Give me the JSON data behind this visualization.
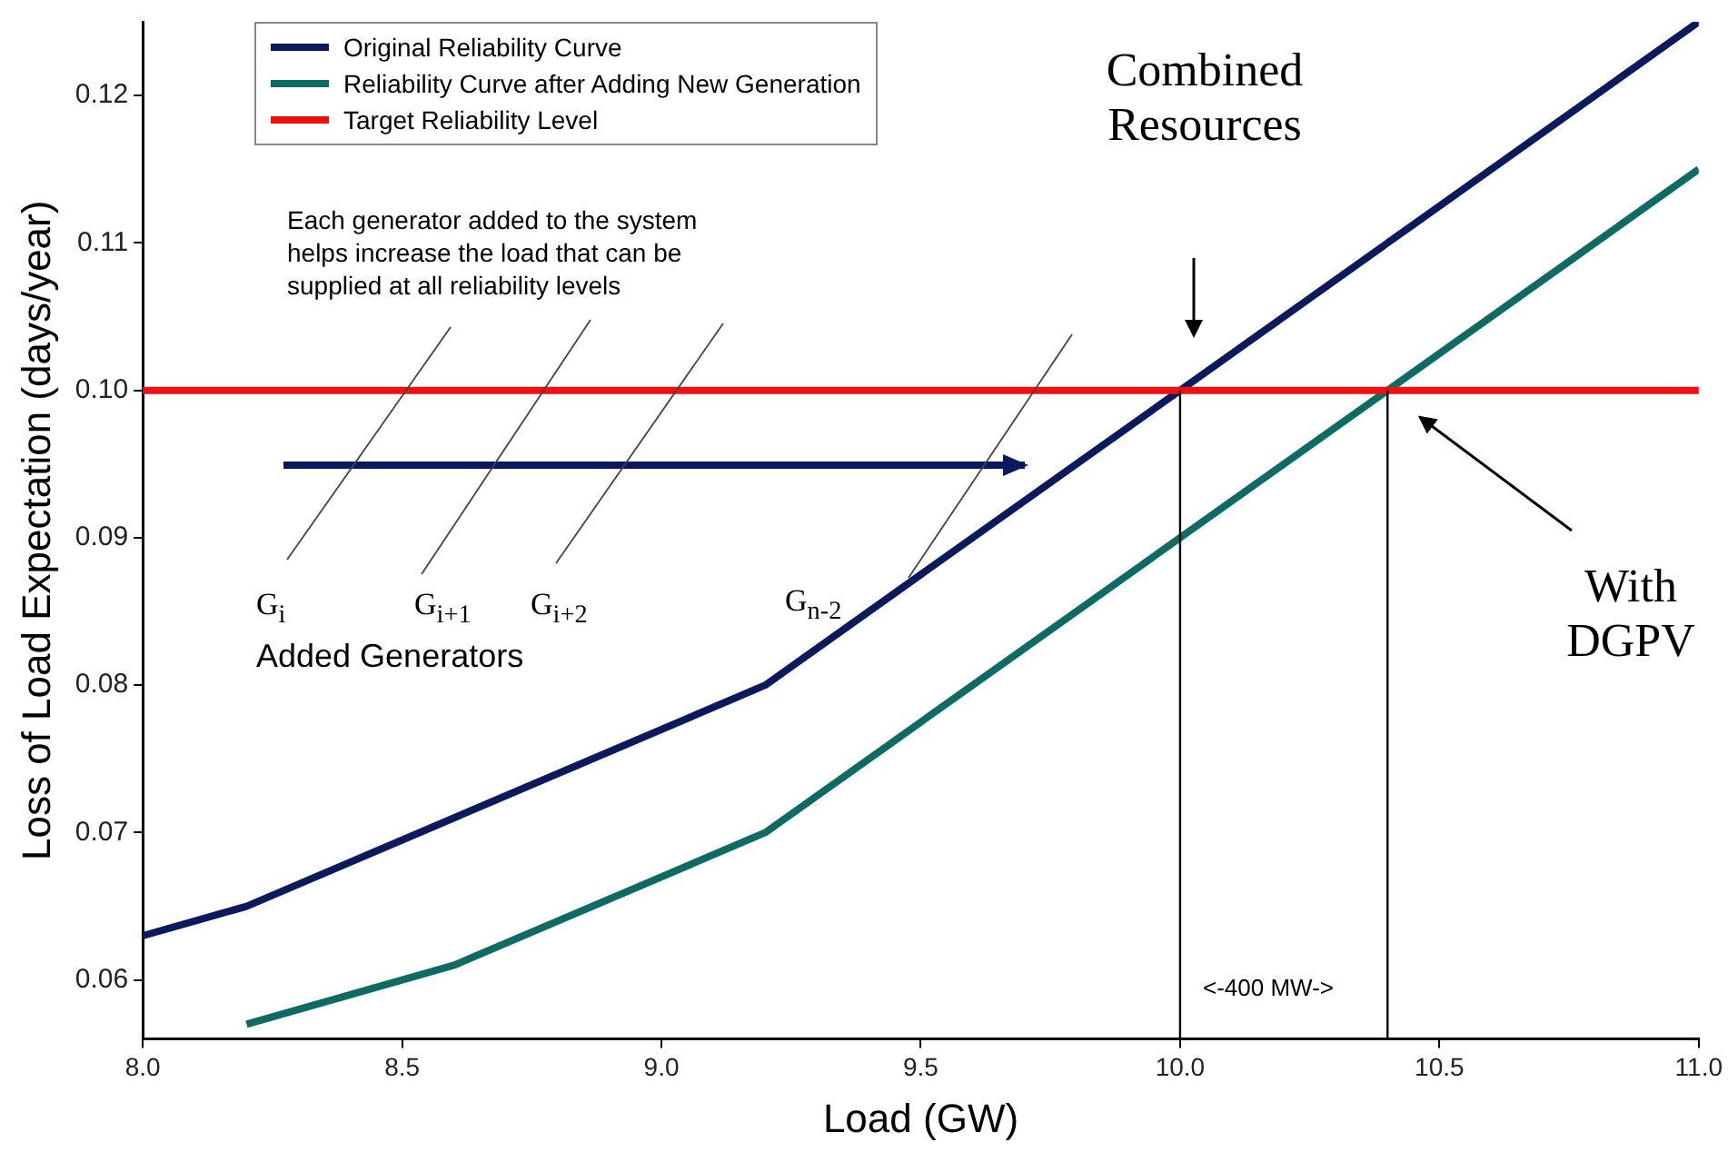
{
  "chart_data": {
    "type": "line",
    "xlabel": "Load (GW)",
    "ylabel": "Loss of Load Expectation (days/year)",
    "series": [
      {
        "name": "Original Reliability Curve",
        "color": "#0a1a5c",
        "x": [
          8.0,
          8.2,
          8.6,
          9.2,
          10.0,
          11.0
        ],
        "values": [
          0.063,
          0.065,
          0.071,
          0.08,
          0.1,
          0.125
        ]
      },
      {
        "name": "Reliability Curve after Adding New Generation",
        "color": "#0e6b64",
        "x": [
          8.2,
          8.6,
          9.2,
          10.4,
          11.0
        ],
        "values": [
          0.057,
          0.061,
          0.07,
          0.1,
          0.115
        ]
      }
    ],
    "ref_lines": [
      {
        "axis": "y",
        "value": 0.1,
        "label": "Target Reliability Level",
        "color": "#ee1111"
      },
      {
        "axis": "x",
        "value": 10.0,
        "color": "#000000"
      },
      {
        "axis": "x",
        "value": 10.4,
        "color": "#000000"
      }
    ],
    "annotations": [
      "Combined Resources",
      "With DGPV",
      "Each generator added to the system helps increase the load that can be supplied at all reliability levels",
      "G$_{i}$",
      "G$_{i+1}$",
      "G$_{i+2}$",
      "G$_{n-2}$",
      "Added Generators",
      "<-400 MW->"
    ],
    "xlim": [
      8.0,
      11.0
    ],
    "xticks": [
      {
        "value": 8,
        "label": "8.0"
      },
      8.5,
      {
        "value": 9,
        "label": "9.0"
      },
      9.5,
      {
        "value": 10,
        "label": "10.0"
      },
      10.5,
      {
        "value": 11,
        "label": "11.0"
      }
    ],
    "ylim": [
      0.056,
      0.125
    ],
    "yticks": [
      0.06,
      0.07,
      0.08,
      0.09,
      {
        "value": 0.1,
        "label": "0.10"
      },
      0.11,
      0.12
    ],
    "legend": "top left",
    "marker": "none",
    "line_style": "solid"
  }
}
